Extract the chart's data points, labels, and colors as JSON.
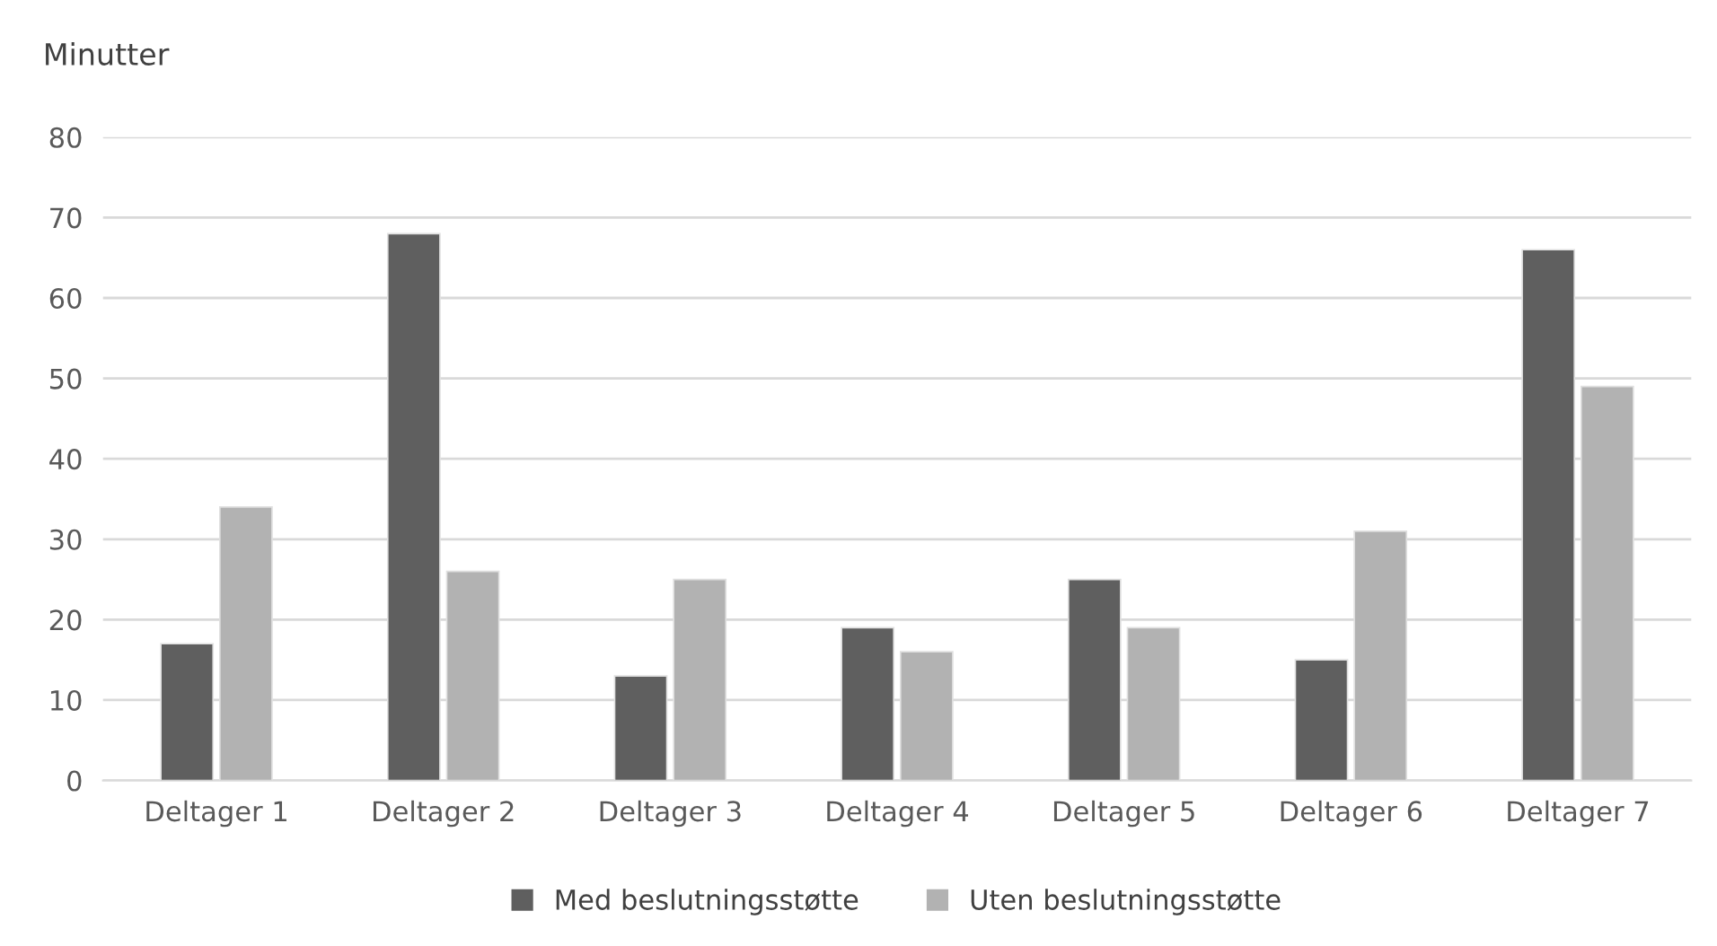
{
  "chart_data": {
    "type": "bar",
    "ylabel": "Minutter",
    "categories": [
      "Deltager 1",
      "Deltager 2",
      "Deltager 3",
      "Deltager 4",
      "Deltager 5",
      "Deltager 6",
      "Deltager 7"
    ],
    "series": [
      {
        "name": "Med beslutningsstøtte",
        "color": "#5f5f5f",
        "values": [
          17,
          68,
          13,
          19,
          25,
          15,
          66
        ]
      },
      {
        "name": "Uten beslutningsstøtte",
        "color": "#b2b2b2",
        "values": [
          34,
          26,
          25,
          16,
          19,
          31,
          49
        ]
      }
    ],
    "ylim": [
      0,
      80
    ],
    "yticks": [
      0,
      10,
      20,
      30,
      40,
      50,
      60,
      70,
      80
    ],
    "grid": "y",
    "legend": "bottom"
  }
}
